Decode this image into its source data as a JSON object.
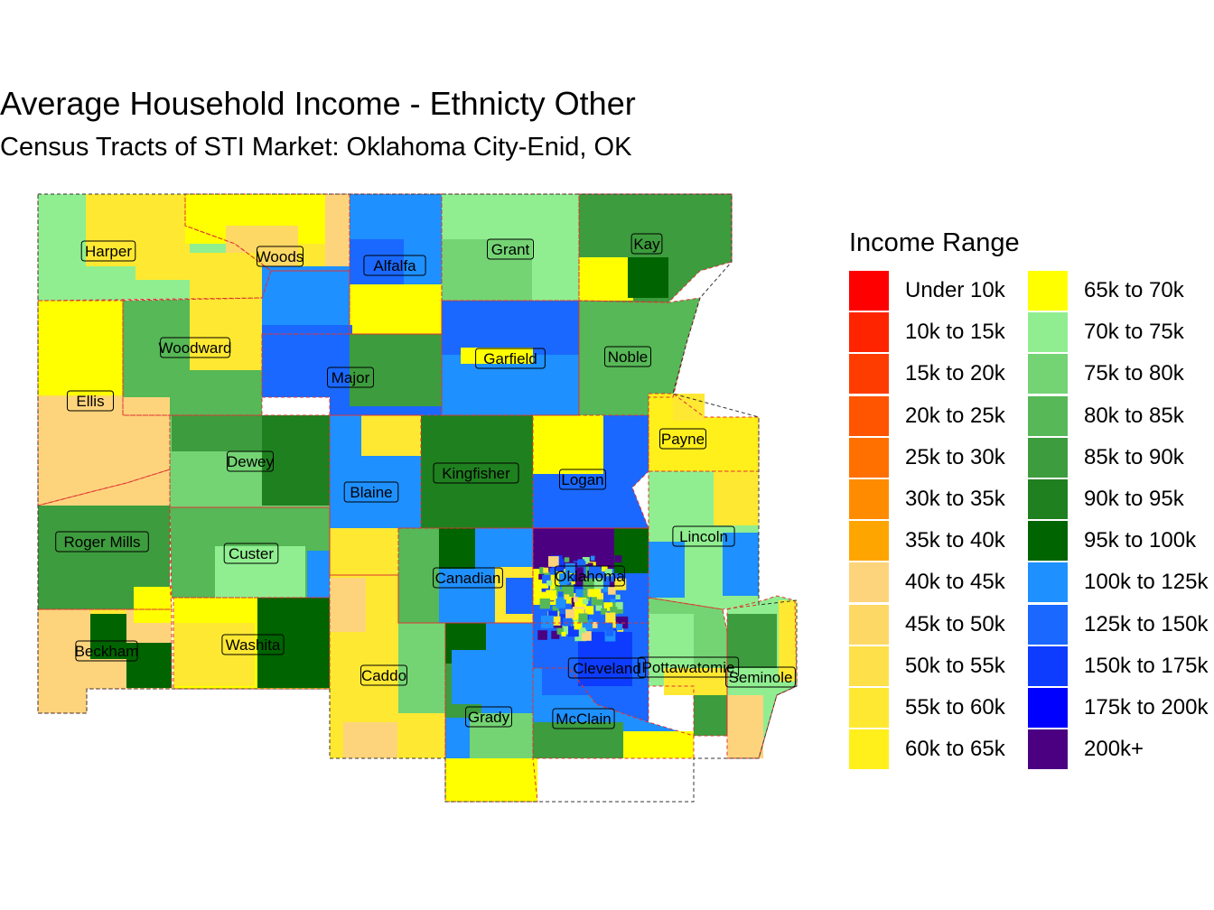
{
  "title": "Average Household Income - Ethnicty Other",
  "subtitle": "Census Tracts of STI Market: Oklahoma City-Enid, OK",
  "legend": {
    "title": "Income Range",
    "items": [
      {
        "label": "Under 10k",
        "color": "#ff0000"
      },
      {
        "label": "10k to 15k",
        "color": "#ff2400"
      },
      {
        "label": "15k to 20k",
        "color": "#ff3c00"
      },
      {
        "label": "20k to 25k",
        "color": "#ff5500"
      },
      {
        "label": "25k to 30k",
        "color": "#ff7000"
      },
      {
        "label": "30k to 35k",
        "color": "#ff8c00"
      },
      {
        "label": "35k to 40k",
        "color": "#ffa500"
      },
      {
        "label": "40k to 45k",
        "color": "#fdd47c"
      },
      {
        "label": "45k to 50k",
        "color": "#fdd865"
      },
      {
        "label": "50k to 55k",
        "color": "#fde04a"
      },
      {
        "label": "55k to 60k",
        "color": "#ffe832"
      },
      {
        "label": "60k to 65k",
        "color": "#ffef1a"
      },
      {
        "label": "65k to 70k",
        "color": "#ffff00"
      },
      {
        "label": "70k to 75k",
        "color": "#90ee90"
      },
      {
        "label": "75k to 80k",
        "color": "#74d474"
      },
      {
        "label": "80k to 85k",
        "color": "#56b856"
      },
      {
        "label": "85k to 90k",
        "color": "#3d9c3d"
      },
      {
        "label": "90k to 95k",
        "color": "#1f801f"
      },
      {
        "label": "95k to 100k",
        "color": "#006400"
      },
      {
        "label": "100k to 125k",
        "color": "#1e90ff"
      },
      {
        "label": "125k to 150k",
        "color": "#1a68ff"
      },
      {
        "label": "150k to 175k",
        "color": "#0d3cff"
      },
      {
        "label": "175k to 200k",
        "color": "#0000ff"
      },
      {
        "label": "200k+",
        "color": "#4b0082"
      }
    ]
  },
  "counties": [
    {
      "name": "Harper",
      "color": "#90ee90"
    },
    {
      "name": "Woods",
      "color": "#ffe832"
    },
    {
      "name": "Alfalfa",
      "color": "#1e90ff"
    },
    {
      "name": "Grant",
      "color": "#90ee90"
    },
    {
      "name": "Kay",
      "color": "#3d9c3d"
    },
    {
      "name": "Ellis",
      "color": "#fdd865"
    },
    {
      "name": "Woodward",
      "color": "#56b856"
    },
    {
      "name": "Major",
      "color": "#1a68ff"
    },
    {
      "name": "Garfield",
      "color": "#1e90ff"
    },
    {
      "name": "Noble",
      "color": "#56b856"
    },
    {
      "name": "Dewey",
      "color": "#74d474"
    },
    {
      "name": "Blaine",
      "color": "#1e90ff"
    },
    {
      "name": "Kingfisher",
      "color": "#1f801f"
    },
    {
      "name": "Logan",
      "color": "#1a68ff"
    },
    {
      "name": "Payne",
      "color": "#ffef1a"
    },
    {
      "name": "Roger Mills",
      "color": "#3d9c3d"
    },
    {
      "name": "Custer",
      "color": "#56b856"
    },
    {
      "name": "Canadian",
      "color": "#1e90ff"
    },
    {
      "name": "Oklahoma",
      "color": "#1a68ff"
    },
    {
      "name": "Lincoln",
      "color": "#90ee90"
    },
    {
      "name": "Beckham",
      "color": "#fdd47c"
    },
    {
      "name": "Washita",
      "color": "#ffff00"
    },
    {
      "name": "Caddo",
      "color": "#ffe832"
    },
    {
      "name": "Cleveland",
      "color": "#1a68ff"
    },
    {
      "name": "Pottawatomie",
      "color": "#74d474"
    },
    {
      "name": "Seminole",
      "color": "#90ee90"
    },
    {
      "name": "Grady",
      "color": "#1e90ff"
    },
    {
      "name": "McClain",
      "color": "#1e90ff"
    }
  ]
}
